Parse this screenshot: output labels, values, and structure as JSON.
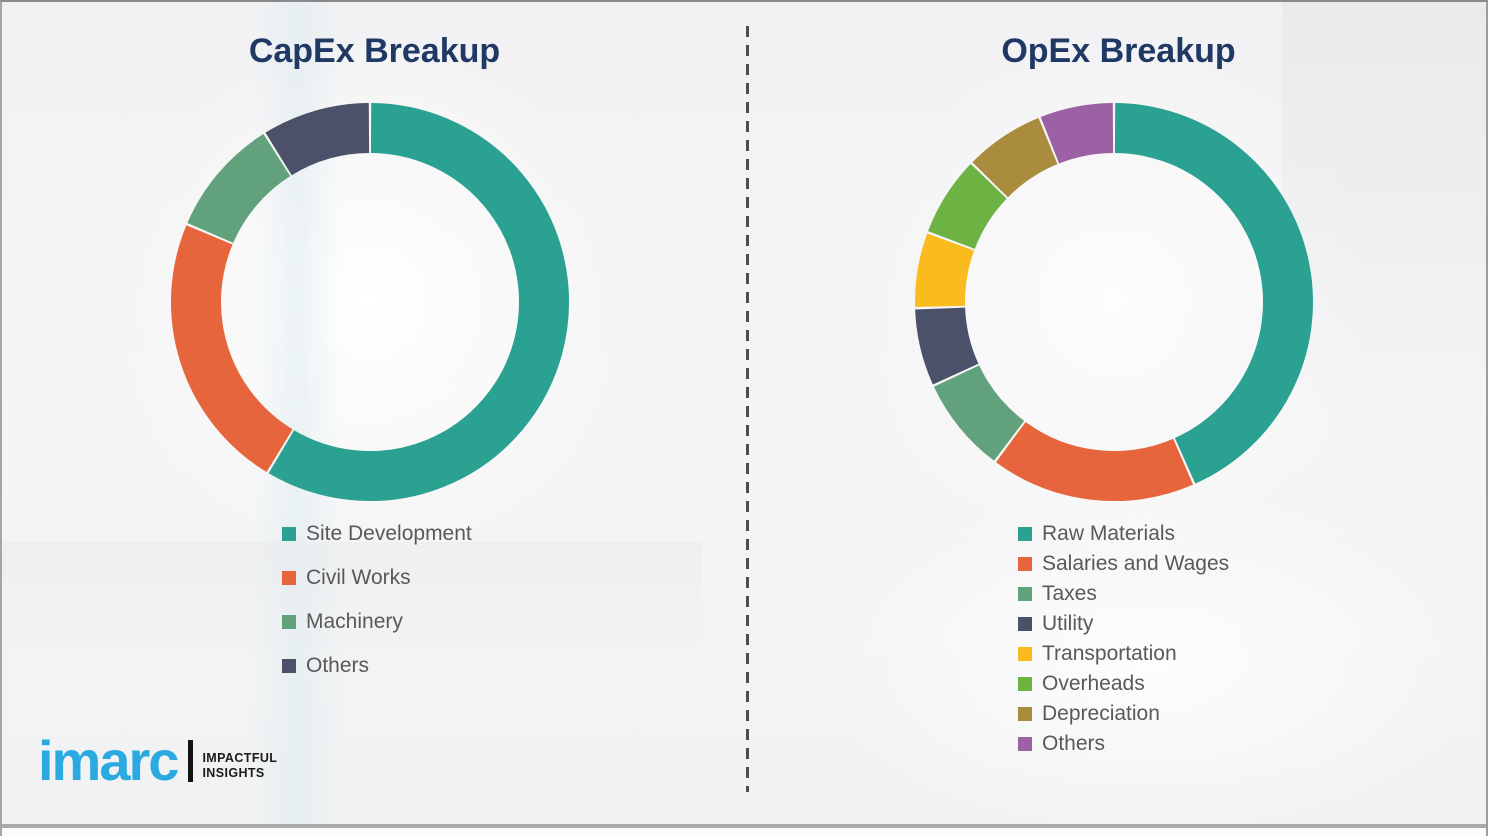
{
  "page": {
    "title_color": "#1f3864",
    "legend_text_color": "#595959",
    "divider_color": "#4d4d4d"
  },
  "chart_data": [
    {
      "type": "pie",
      "variant": "donut",
      "title": "CapEx Breakup",
      "categories": [
        "Site Development",
        "Civil Works",
        "Machinery",
        "Others"
      ],
      "values": [
        58.6,
        22.8,
        9.7,
        8.9
      ],
      "value_unit": "percent (estimated from arc angles)",
      "colors": [
        "#2aa191",
        "#e7653d",
        "#61a17b",
        "#4a5168"
      ],
      "start_angle_deg": 0,
      "direction": "clockwise",
      "legend_position": "bottom-left"
    },
    {
      "type": "pie",
      "variant": "donut",
      "title": "OpEx Breakup",
      "categories": [
        "Raw Materials",
        "Salaries and Wages",
        "Taxes",
        "Utility",
        "Transportation",
        "Overheads",
        "Depreciation",
        "Others"
      ],
      "values": [
        43.4,
        16.8,
        7.9,
        6.4,
        6.2,
        6.6,
        6.6,
        6.1
      ],
      "value_unit": "percent (estimated from arc angles)",
      "colors": [
        "#2aa191",
        "#e7653d",
        "#61a17b",
        "#4a5168",
        "#f9bb1d",
        "#6db343",
        "#aa8c3e",
        "#9c61a5"
      ],
      "start_angle_deg": 0,
      "direction": "clockwise",
      "legend_position": "bottom-left"
    }
  ],
  "logo": {
    "brand": "imarc",
    "tagline_line1": "IMPACTFUL",
    "tagline_line2": "INSIGHTS",
    "brand_color": "#2ba9e1"
  }
}
